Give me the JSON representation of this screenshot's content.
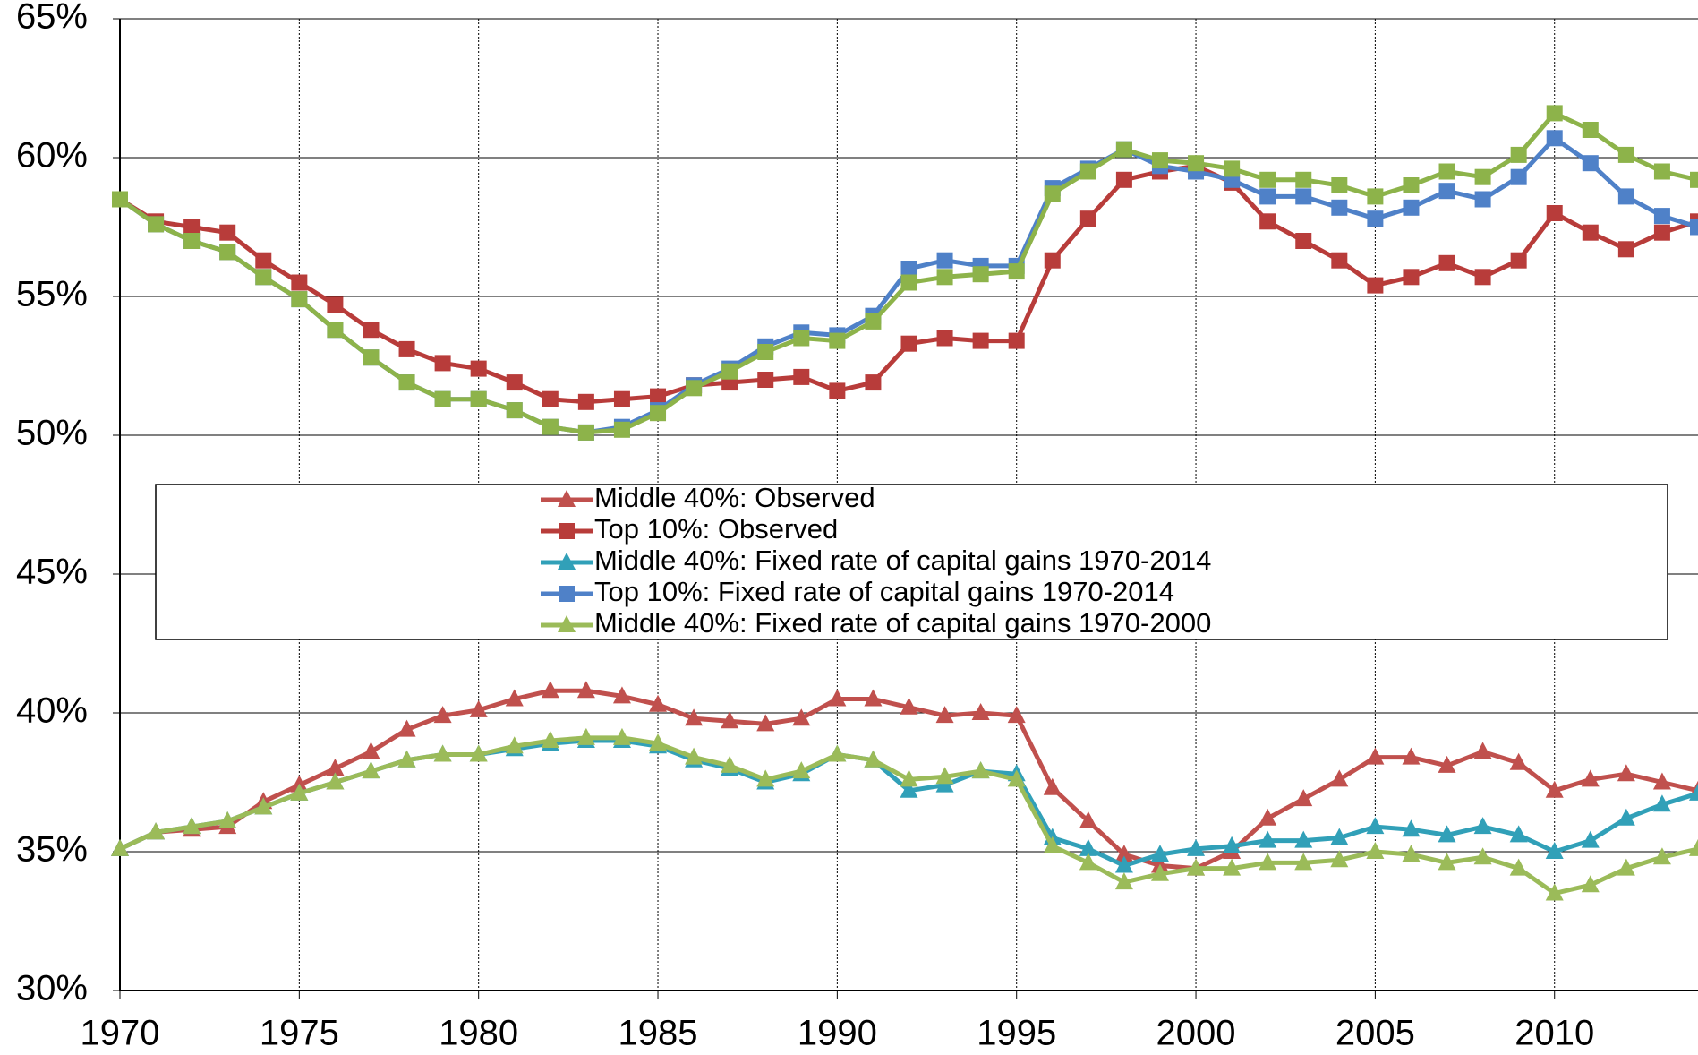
{
  "chart_data": {
    "type": "line",
    "x": [
      1970,
      1971,
      1972,
      1973,
      1974,
      1975,
      1976,
      1977,
      1978,
      1979,
      1980,
      1981,
      1982,
      1983,
      1984,
      1985,
      1986,
      1987,
      1988,
      1989,
      1990,
      1991,
      1992,
      1993,
      1994,
      1995,
      1996,
      1997,
      1998,
      1999,
      2000,
      2001,
      2002,
      2003,
      2004,
      2005,
      2006,
      2007,
      2008,
      2009,
      2010,
      2011,
      2012,
      2013,
      2014
    ],
    "xlim": [
      1970,
      2014
    ],
    "xticks": [
      1970,
      1975,
      1980,
      1985,
      1990,
      1995,
      2000,
      2005,
      2010
    ],
    "ylim": [
      30,
      65
    ],
    "yticks": [
      {
        "value": 30,
        "label": "30%"
      },
      {
        "value": 35,
        "label": "35%"
      },
      {
        "value": 40,
        "label": "40%"
      },
      {
        "value": 45,
        "label": "45%"
      },
      {
        "value": 50,
        "label": "50%"
      },
      {
        "value": 55,
        "label": "55%"
      },
      {
        "value": 60,
        "label": "60%"
      },
      {
        "value": 65,
        "label": "65%"
      }
    ],
    "grid": true,
    "series": [
      {
        "name": "Middle 40%: Observed",
        "color": "#c0504d",
        "marker": "triangle",
        "values": [
          35.1,
          35.7,
          35.8,
          35.9,
          36.8,
          37.4,
          38.0,
          38.6,
          39.4,
          39.9,
          40.1,
          40.5,
          40.8,
          40.8,
          40.6,
          40.3,
          39.8,
          39.7,
          39.6,
          39.8,
          40.5,
          40.5,
          40.2,
          39.9,
          40.0,
          39.9,
          37.3,
          36.1,
          34.9,
          34.5,
          34.4,
          35.0,
          36.2,
          36.9,
          37.6,
          38.4,
          38.4,
          38.1,
          38.6,
          38.2,
          37.2,
          37.6,
          37.8,
          37.5,
          37.2
        ]
      },
      {
        "name": "Top 10%: Observed",
        "color": "#b83c3a",
        "marker": "square",
        "values": [
          58.5,
          57.7,
          57.5,
          57.3,
          56.3,
          55.5,
          54.7,
          53.8,
          53.1,
          52.6,
          52.4,
          51.9,
          51.3,
          51.2,
          51.3,
          51.4,
          51.8,
          51.9,
          52.0,
          52.1,
          51.6,
          51.9,
          53.3,
          53.5,
          53.4,
          53.4,
          56.3,
          57.8,
          59.2,
          59.5,
          59.7,
          59.1,
          57.7,
          57.0,
          56.3,
          55.4,
          55.7,
          56.2,
          55.7,
          56.3,
          58.0,
          57.3,
          56.7,
          57.3,
          57.7
        ]
      },
      {
        "name": "Middle 40%: Fixed rate of capital gains 1970-2014",
        "color": "#31a0b8",
        "marker": "triangle",
        "values": [
          35.1,
          35.7,
          35.9,
          36.1,
          36.6,
          37.1,
          37.5,
          37.9,
          38.3,
          38.5,
          38.5,
          38.7,
          38.9,
          39.0,
          39.0,
          38.8,
          38.3,
          38.0,
          37.5,
          37.8,
          38.5,
          38.3,
          37.2,
          37.4,
          37.9,
          37.8,
          35.5,
          35.1,
          34.5,
          34.9,
          35.1,
          35.2,
          35.4,
          35.4,
          35.5,
          35.9,
          35.8,
          35.6,
          35.9,
          35.6,
          35.0,
          35.4,
          36.2,
          36.7,
          37.1
        ]
      },
      {
        "name": "Top 10%: Fixed rate of capital gains 1970-2014",
        "color": "#4f81c8",
        "marker": "square",
        "values": [
          58.5,
          57.6,
          57.0,
          56.6,
          55.7,
          54.9,
          53.8,
          52.8,
          51.9,
          51.3,
          51.3,
          50.9,
          50.3,
          50.1,
          50.3,
          50.9,
          51.8,
          52.4,
          53.2,
          53.7,
          53.6,
          54.3,
          56.0,
          56.3,
          56.1,
          56.1,
          58.9,
          59.6,
          60.3,
          59.7,
          59.5,
          59.2,
          58.6,
          58.6,
          58.2,
          57.8,
          58.2,
          58.8,
          58.5,
          59.3,
          60.7,
          59.8,
          58.6,
          57.9,
          57.5
        ]
      },
      {
        "name": "Middle 40%: Fixed rate of capital gains 1970-2000",
        "color": "#9bbb59",
        "marker": "triangle",
        "values": [
          35.1,
          35.7,
          35.9,
          36.1,
          36.6,
          37.1,
          37.5,
          37.9,
          38.3,
          38.5,
          38.5,
          38.8,
          39.0,
          39.1,
          39.1,
          38.9,
          38.4,
          38.1,
          37.6,
          37.9,
          38.5,
          38.3,
          37.6,
          37.7,
          37.9,
          37.6,
          35.2,
          34.6,
          33.9,
          34.2,
          34.4,
          34.4,
          34.6,
          34.6,
          34.7,
          35.0,
          34.9,
          34.6,
          34.8,
          34.4,
          33.5,
          33.8,
          34.4,
          34.8,
          35.1
        ]
      },
      {
        "color": "#8db34a",
        "marker": "square",
        "values": [
          58.5,
          57.6,
          57.0,
          56.6,
          55.7,
          54.9,
          53.8,
          52.8,
          51.9,
          51.3,
          51.3,
          50.9,
          50.3,
          50.1,
          50.2,
          50.8,
          51.7,
          52.3,
          53.0,
          53.5,
          53.4,
          54.1,
          55.5,
          55.7,
          55.8,
          55.9,
          58.7,
          59.5,
          60.3,
          59.9,
          59.8,
          59.6,
          59.2,
          59.2,
          59.0,
          58.6,
          59.0,
          59.5,
          59.3,
          60.1,
          61.6,
          61.0,
          60.1,
          59.5,
          59.2
        ]
      }
    ]
  }
}
